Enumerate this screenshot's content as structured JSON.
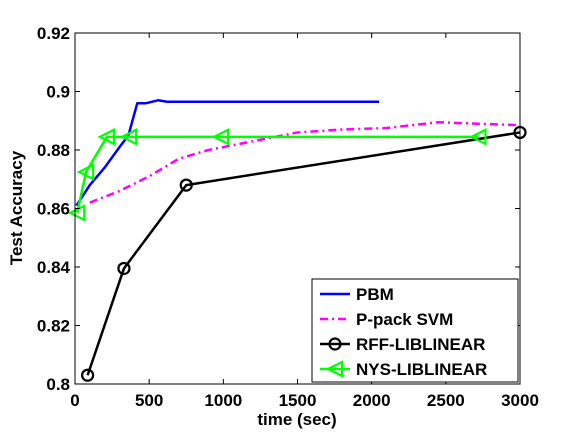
{
  "chart_data": {
    "type": "line",
    "xlabel": "time (sec)",
    "ylabel": "Test Accuracy",
    "xlim": [
      0,
      3000
    ],
    "ylim": [
      0.8,
      0.92
    ],
    "x_ticks": [
      0,
      500,
      1000,
      1500,
      2000,
      2500,
      3000
    ],
    "x_tick_labels": [
      "0",
      "500",
      "1000",
      "1500",
      "2000",
      "2500",
      "3000"
    ],
    "y_ticks": [
      0.8,
      0.82,
      0.84,
      0.86,
      0.88,
      0.9,
      0.92
    ],
    "y_tick_labels": [
      "0.8",
      "0.82",
      "0.84",
      "0.86",
      "0.88",
      "0.9",
      "0.92"
    ],
    "grid": false,
    "legend_position": "bottom-right",
    "series": [
      {
        "name": "PBM",
        "color": "#0000ff",
        "style": "solid",
        "marker": "none",
        "x": [
          10,
          100,
          200,
          300,
          360,
          420,
          480,
          560,
          620,
          700,
          1000,
          1500,
          2050
        ],
        "y": [
          0.861,
          0.868,
          0.874,
          0.881,
          0.885,
          0.896,
          0.896,
          0.897,
          0.8965,
          0.8965,
          0.8965,
          0.8965,
          0.8965
        ]
      },
      {
        "name": "P-pack SVM",
        "color": "#ff00ff",
        "style": "dash-dot",
        "marker": "none",
        "x": [
          100,
          300,
          500,
          700,
          900,
          1200,
          1500,
          1800,
          2100,
          2450,
          2700,
          3000
        ],
        "y": [
          0.862,
          0.866,
          0.871,
          0.877,
          0.88,
          0.883,
          0.886,
          0.887,
          0.8875,
          0.8895,
          0.889,
          0.8885
        ]
      },
      {
        "name": "RFF-LIBLINEAR",
        "color": "#000000",
        "style": "solid",
        "marker": "circle",
        "x": [
          85,
          330,
          750,
          3000
        ],
        "y": [
          0.803,
          0.8395,
          0.868,
          0.886
        ]
      },
      {
        "name": "NYS-LIBLINEAR",
        "color": "#00ff00",
        "style": "solid",
        "marker": "triangle-left",
        "x": [
          15,
          75,
          215,
          365,
          985,
          2720
        ],
        "y": [
          0.8585,
          0.8725,
          0.8845,
          0.8845,
          0.8845,
          0.8845
        ]
      }
    ]
  }
}
